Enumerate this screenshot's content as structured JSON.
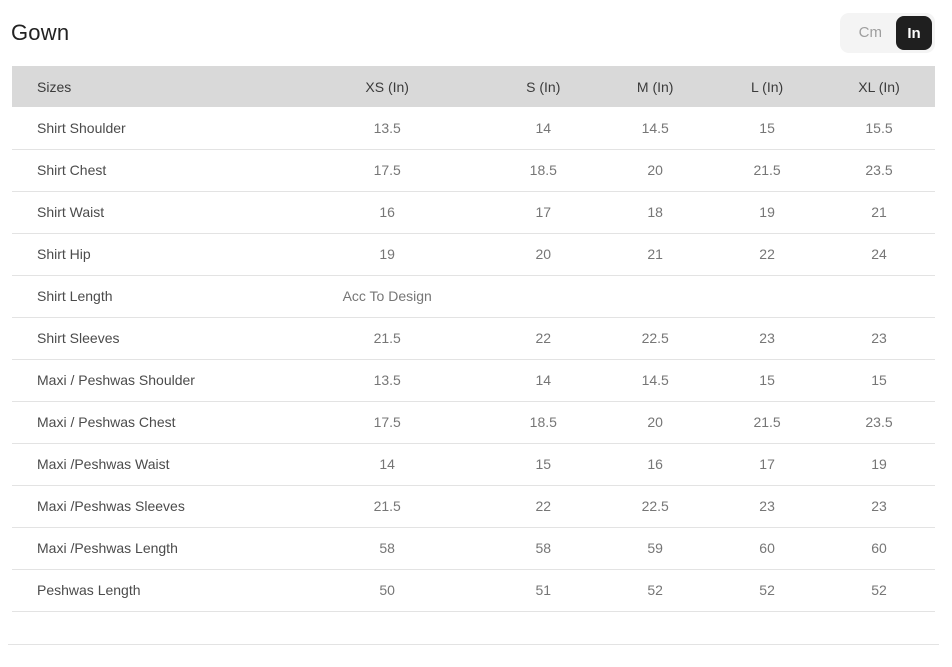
{
  "page": {
    "title": "Gown"
  },
  "unit_toggle": {
    "options": [
      "Cm",
      "In"
    ],
    "selected": "In"
  },
  "colors": {
    "header_bg": "#d9d9d9",
    "row_border": "#e3e3e3",
    "toggle_bg": "#f4f4f4",
    "toggle_selected_bg": "#1f1f1f"
  },
  "chart_data": {
    "type": "table",
    "title": "Gown",
    "unit": "In",
    "columns": [
      "Sizes",
      "XS (In)",
      "S (In)",
      "M (In)",
      "L (In)",
      "XL (In)"
    ],
    "rows": [
      [
        "Shirt Shoulder",
        "13.5",
        "14",
        "14.5",
        "15",
        "15.5"
      ],
      [
        "Shirt Chest",
        "17.5",
        "18.5",
        "20",
        "21.5",
        "23.5"
      ],
      [
        "Shirt Waist",
        "16",
        "17",
        "18",
        "19",
        "21"
      ],
      [
        "Shirt Hip",
        "19",
        "20",
        "21",
        "22",
        "24"
      ],
      [
        "Shirt Length",
        "Acc To Design",
        "",
        "",
        "",
        ""
      ],
      [
        "Shirt Sleeves",
        "21.5",
        "22",
        "22.5",
        "23",
        "23"
      ],
      [
        "Maxi / Peshwas Shoulder",
        "13.5",
        "14",
        "14.5",
        "15",
        "15"
      ],
      [
        "Maxi / Peshwas Chest",
        "17.5",
        "18.5",
        "20",
        "21.5",
        "23.5"
      ],
      [
        "Maxi /Peshwas Waist",
        "14",
        "15",
        "16",
        "17",
        "19"
      ],
      [
        "Maxi /Peshwas Sleeves",
        "21.5",
        "22",
        "22.5",
        "23",
        "23"
      ],
      [
        "Maxi /Peshwas Length",
        "58",
        "58",
        "59",
        "60",
        "60"
      ],
      [
        "Peshwas Length",
        "50",
        "51",
        "52",
        "52",
        "52"
      ]
    ]
  }
}
